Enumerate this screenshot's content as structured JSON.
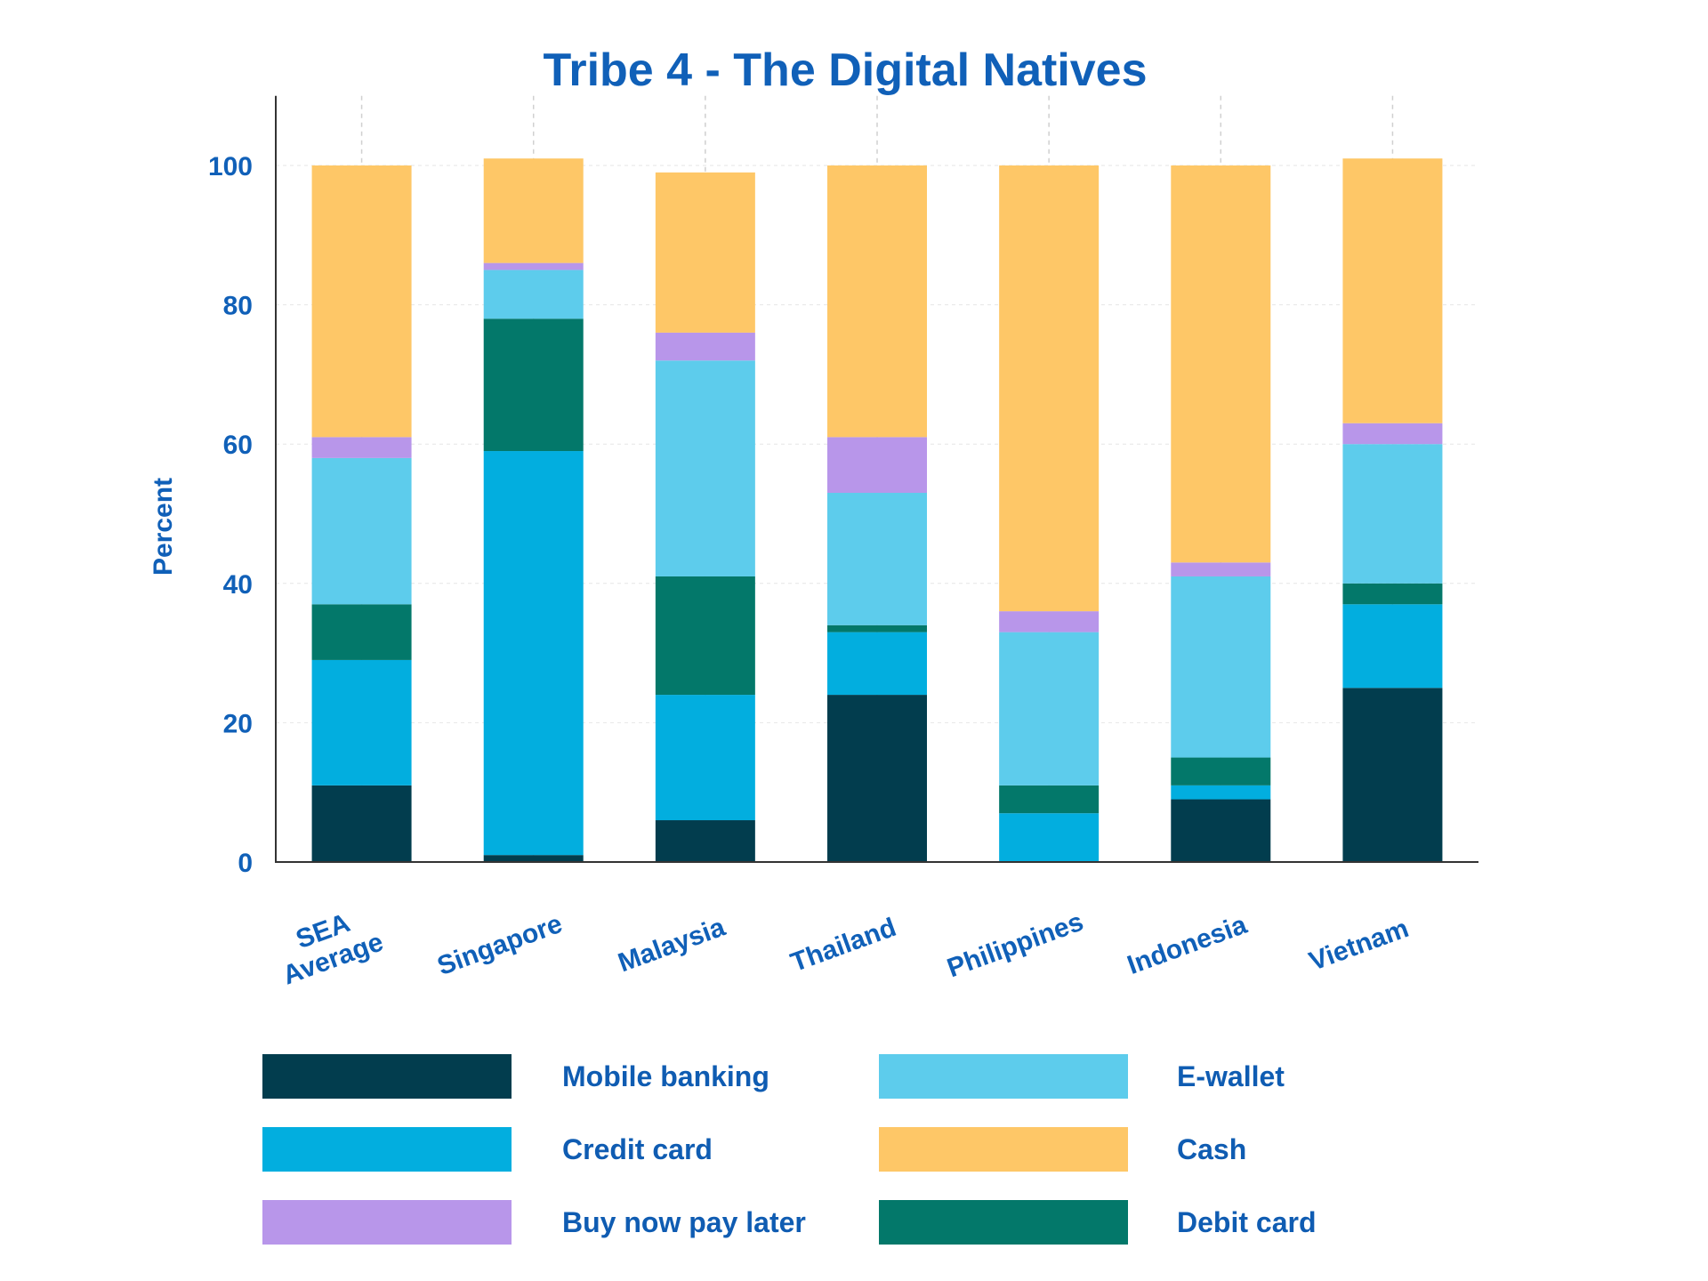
{
  "chart_data": {
    "type": "bar",
    "stacked": true,
    "title": "Tribe 4 - The Digital Natives",
    "ylabel": "Percent",
    "xlabel": "",
    "ylim": [
      0,
      110
    ],
    "yticks": [
      0,
      20,
      40,
      60,
      80,
      100
    ],
    "grid": true,
    "legend_position": "bottom",
    "categories": [
      "SEA\nAverage",
      "Singapore",
      "Malaysia",
      "Thailand",
      "Philippines",
      "Indonesia",
      "Vietnam"
    ],
    "series": [
      {
        "name": "Mobile banking",
        "color": "#023D4E",
        "values": [
          11,
          1,
          6,
          24,
          0,
          9,
          25
        ]
      },
      {
        "name": "Credit card",
        "color": "#02AEDF",
        "values": [
          18,
          58,
          18,
          9,
          7,
          2,
          12
        ]
      },
      {
        "name": "Debit card",
        "color": "#03786A",
        "values": [
          8,
          19,
          17,
          1,
          4,
          4,
          3
        ]
      },
      {
        "name": "E-wallet",
        "color": "#5DCCEC",
        "values": [
          21,
          7,
          31,
          19,
          22,
          26,
          20
        ]
      },
      {
        "name": "Buy now pay later",
        "color": "#B896EA",
        "values": [
          3,
          1,
          4,
          8,
          3,
          2,
          3
        ]
      },
      {
        "name": "Cash",
        "color": "#FEC767",
        "values": [
          39,
          15,
          23,
          39,
          64,
          57,
          38
        ]
      }
    ]
  },
  "legend": {
    "items": [
      {
        "label": "Mobile banking",
        "color": "#023D4E"
      },
      {
        "label": "E-wallet",
        "color": "#5DCCEC"
      },
      {
        "label": "Credit card",
        "color": "#02AEDF"
      },
      {
        "label": "Cash",
        "color": "#FEC767"
      },
      {
        "label": "Buy now pay later",
        "color": "#B896EA"
      },
      {
        "label": "Debit card",
        "color": "#03786A"
      }
    ]
  }
}
